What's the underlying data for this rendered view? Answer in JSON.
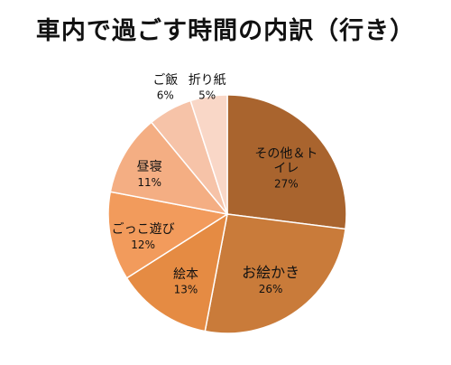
{
  "chart_data": {
    "type": "pie",
    "title": "車内で過ごす時間の内訳（行き）",
    "slices": [
      {
        "label": "その他＆トイレ",
        "label_lines": [
          "その他＆ト",
          "イレ"
        ],
        "value": 27,
        "value_label": "27%",
        "color": "#a9642e"
      },
      {
        "label": "お絵かき",
        "label_lines": [
          "お絵かき"
        ],
        "value": 26,
        "value_label": "26%",
        "color": "#c97b3a"
      },
      {
        "label": "絵本",
        "label_lines": [
          "絵本"
        ],
        "value": 13,
        "value_label": "13%",
        "color": "#e58b43"
      },
      {
        "label": "ごっこ遊び",
        "label_lines": [
          "ごっこ遊び"
        ],
        "value": 12,
        "value_label": "12%",
        "color": "#f29b5c"
      },
      {
        "label": "昼寝",
        "label_lines": [
          "昼寝"
        ],
        "value": 11,
        "value_label": "11%",
        "color": "#f4ae83"
      },
      {
        "label": "ご飯",
        "label_lines": [
          "ご飯"
        ],
        "value": 6,
        "value_label": "6%",
        "color": "#f6c3a8"
      },
      {
        "label": "折り紙",
        "label_lines": [
          "折り紙"
        ],
        "value": 5,
        "value_label": "5%",
        "color": "#f9d7c7"
      }
    ],
    "start": "12 o'clock",
    "direction": "clockwise"
  }
}
